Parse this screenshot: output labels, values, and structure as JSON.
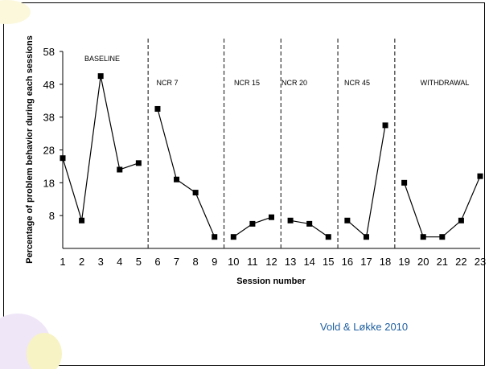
{
  "credit": "Vold & Løkke 2010",
  "colors": {
    "line": "#000000",
    "marker": "#000000",
    "phase_divider": "#333333",
    "credit": "#1f5fa0",
    "decoration": "#efe6f7"
  },
  "chart_data": {
    "type": "line",
    "xlabel": "Session number",
    "ylabel": "Percentage of problem behavior during each sessions",
    "ylim": [
      -2,
      58
    ],
    "yticks": [
      8,
      18,
      28,
      38,
      48,
      58
    ],
    "xlim": [
      1,
      23
    ],
    "xticks": [
      1,
      2,
      3,
      4,
      5,
      6,
      7,
      8,
      9,
      10,
      11,
      12,
      13,
      14,
      15,
      16,
      17,
      18,
      19,
      20,
      21,
      22,
      23
    ],
    "grid": false,
    "legend": "none",
    "phase_dividers": [
      5.5,
      9.5,
      12.5,
      15.5,
      18.5
    ],
    "phases": [
      {
        "label": "BASELINE",
        "sessions": [
          1,
          2,
          3,
          4,
          5
        ],
        "values": [
          25.5,
          6.5,
          50.5,
          22,
          24
        ]
      },
      {
        "label": "NCR 7",
        "sessions": [
          6,
          7,
          8,
          9
        ],
        "values": [
          40.5,
          19,
          15,
          1.5
        ]
      },
      {
        "label": "NCR 15",
        "sessions": [
          10,
          11,
          12
        ],
        "values": [
          1.5,
          5.5,
          7.5
        ]
      },
      {
        "label": "NCR 20",
        "sessions": [
          13,
          14,
          15
        ],
        "values": [
          6.5,
          5.5,
          1.5
        ]
      },
      {
        "label": "NCR 45",
        "sessions": [
          16,
          17,
          18
        ],
        "values": [
          6.5,
          1.5,
          35.5
        ]
      },
      {
        "label": "WITHDRAWAL",
        "sessions": [
          19,
          20,
          21,
          22,
          23
        ],
        "values": [
          18,
          1.5,
          1.5,
          6.5,
          20
        ]
      }
    ]
  }
}
